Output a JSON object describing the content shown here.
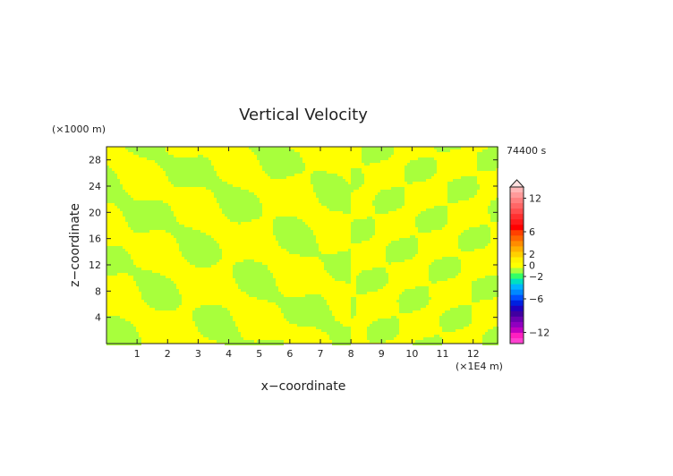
{
  "chart_data": {
    "type": "heatmap",
    "title": "Vertical Velocity",
    "xlabel": "x−coordinate",
    "ylabel": "z−coordinate",
    "x_unit": "(×1E4 m)",
    "y_unit": "(×1000 m)",
    "time_label": "74400 s",
    "x_ticks": [
      "1",
      "2",
      "3",
      "4",
      "5",
      "6",
      "7",
      "8",
      "9",
      "10",
      "11",
      "12"
    ],
    "y_ticks": [
      "4",
      "8",
      "12",
      "16",
      "20",
      "24",
      "28"
    ],
    "xlim": [
      0,
      12.8
    ],
    "ylim": [
      0,
      30
    ],
    "colorbar": {
      "tick_labels": [
        "12",
        "6",
        "2",
        "0",
        "−2",
        "−6",
        "−12"
      ],
      "tick_values": [
        12,
        6,
        2,
        0,
        -2,
        -6,
        -12
      ],
      "levels": [
        14,
        13,
        12,
        11,
        10,
        9,
        8,
        7,
        6,
        5,
        4,
        3,
        2,
        1,
        0,
        -1,
        -2,
        -3,
        -4,
        -5,
        -6,
        -7,
        -8,
        -9,
        -10,
        -11,
        -12,
        -13,
        -14
      ],
      "colors": [
        "#ffb6b6",
        "#ff9a9a",
        "#ff7f7f",
        "#ff6666",
        "#ff4d4d",
        "#ff3030",
        "#ff1a1a",
        "#ff0000",
        "#ff4000",
        "#ff6600",
        "#ff8c00",
        "#ffb000",
        "#ffd000",
        "#fff200",
        "#ffff00",
        "#a8ff3c",
        "#33ff66",
        "#00e0c0",
        "#00b4ff",
        "#0088ff",
        "#0050ff",
        "#0020e0",
        "#2000c0",
        "#4000a0",
        "#6a00b0",
        "#9000c0",
        "#c000c0",
        "#ff20c0",
        "#ff40d0"
      ]
    },
    "dominant_colors": {
      "zero_to_plus1": "#ffff00",
      "minus1_to_zero": "#a8ff3c"
    }
  }
}
